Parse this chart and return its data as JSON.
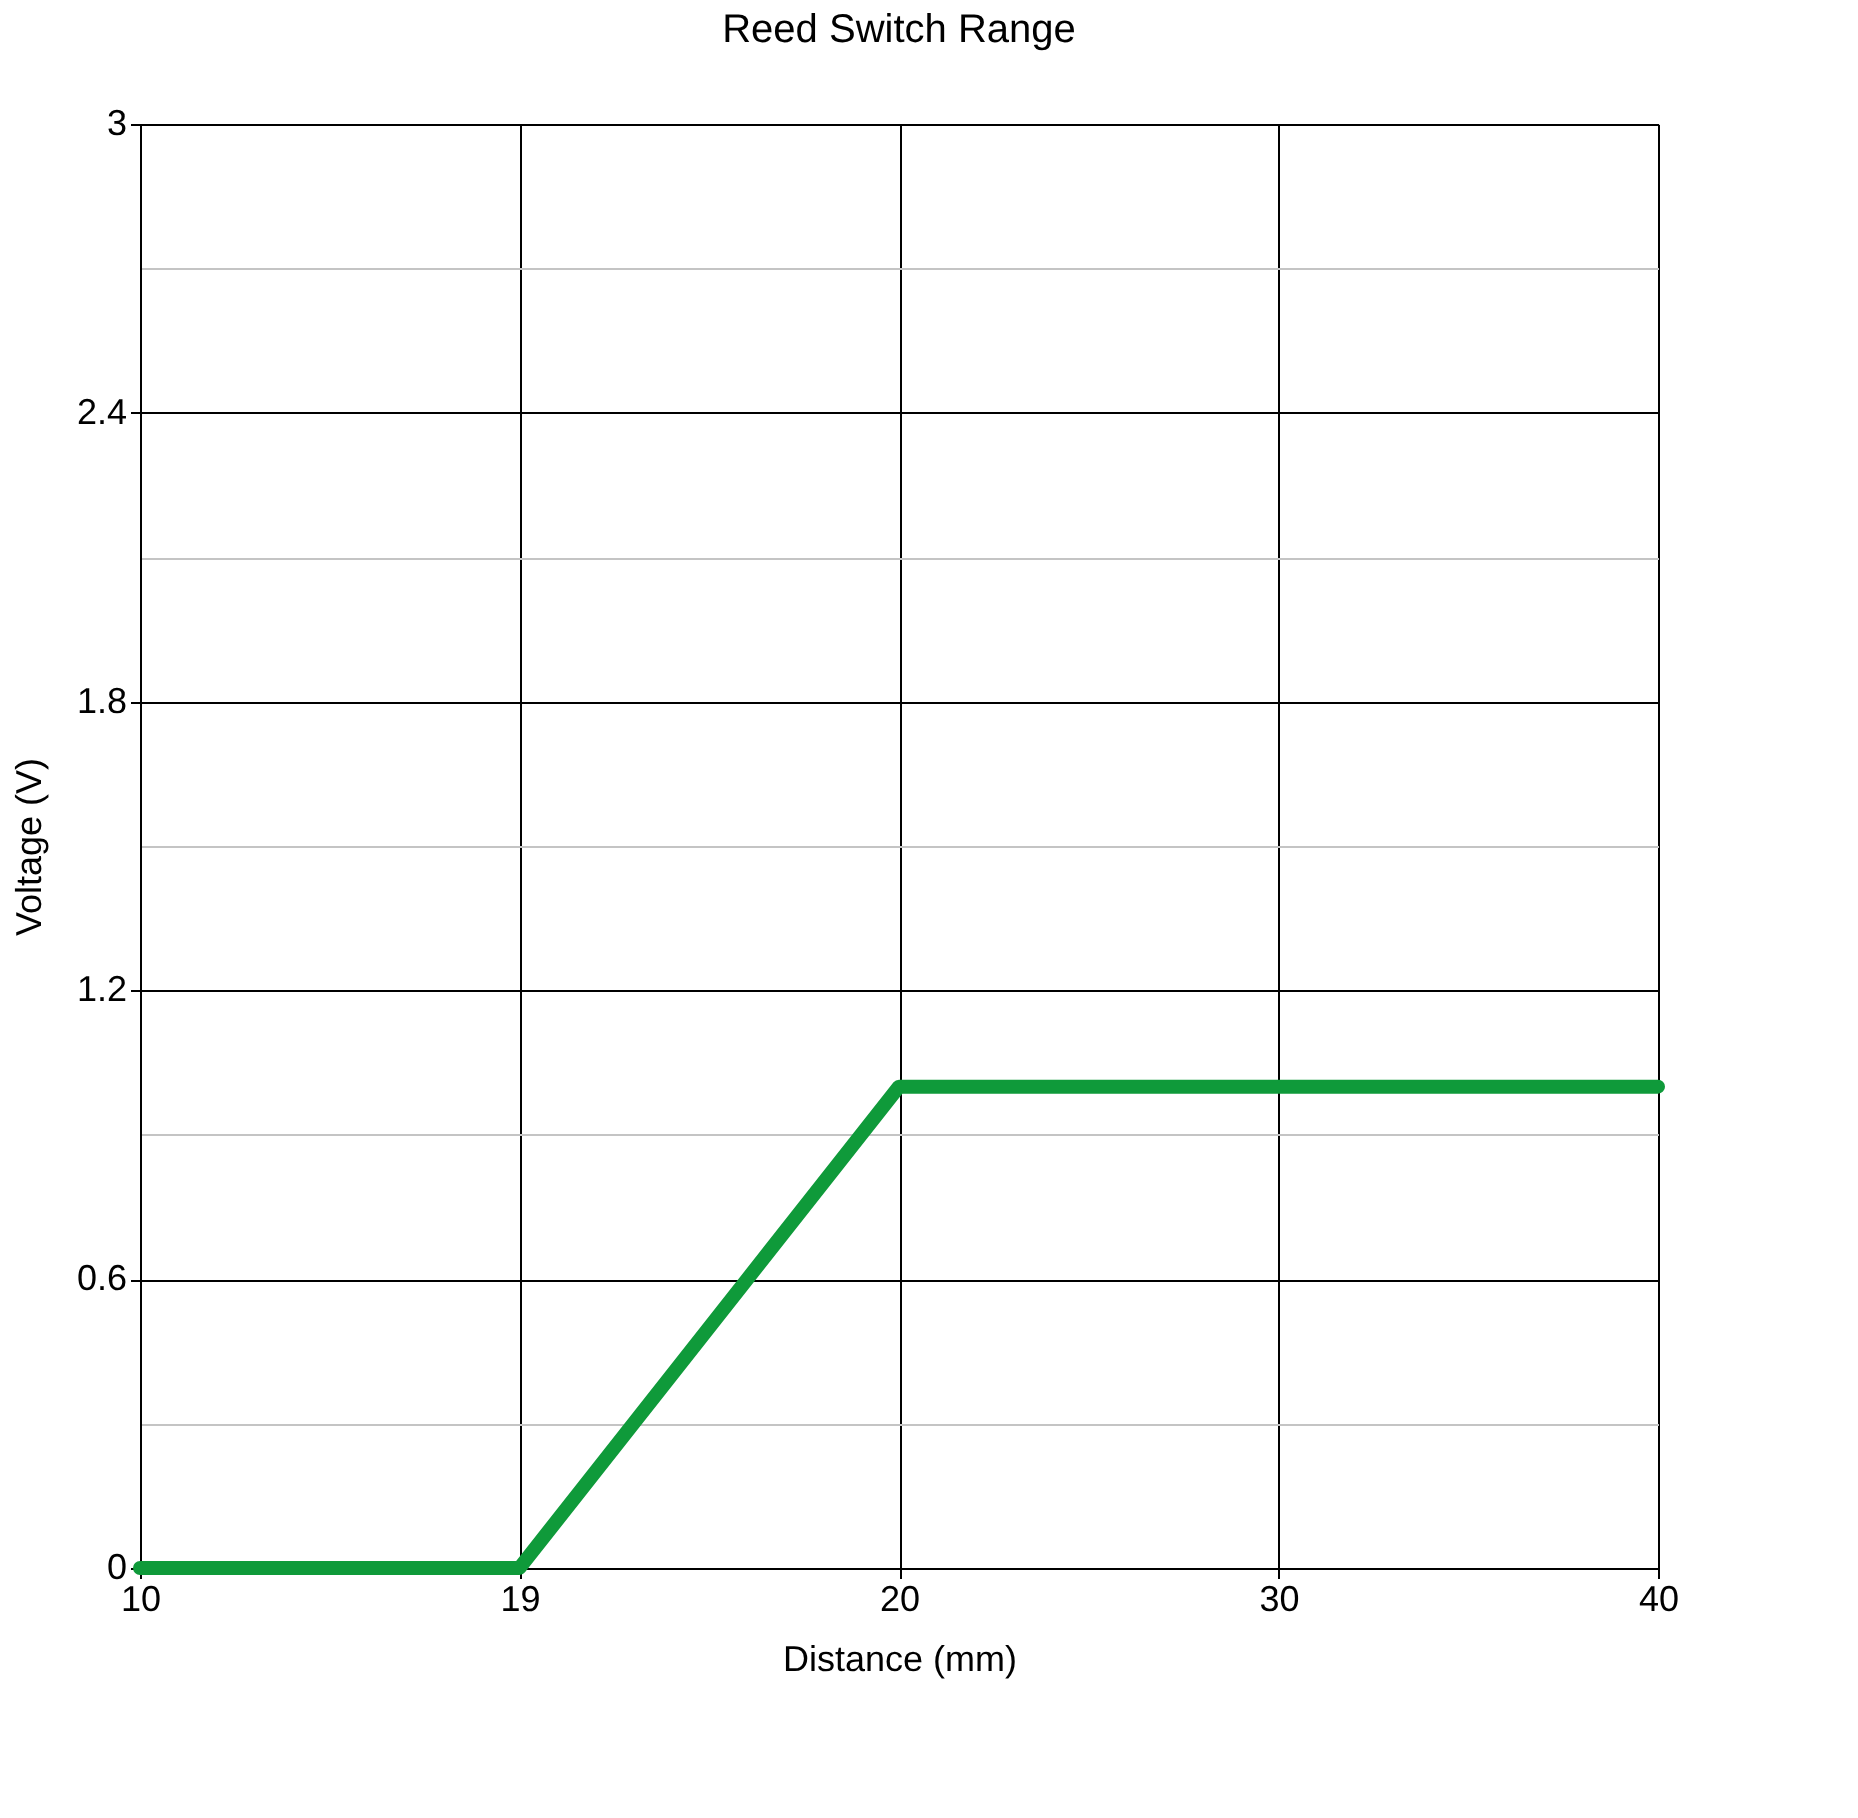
{
  "chart_data": {
    "type": "line",
    "title": "Reed Switch Range",
    "xlabel": "Distance (mm)",
    "ylabel": "Voltage (V)",
    "categories": [
      "10",
      "19",
      "20",
      "30",
      "40"
    ],
    "series": [
      {
        "color": "#0f9a3a",
        "values": [
          0,
          0,
          1.0,
          1.0,
          1.0
        ]
      }
    ],
    "ylim": [
      0,
      3
    ],
    "yticks": [
      0,
      {
        "value": 0.3,
        "label": null
      },
      0.6,
      {
        "value": 0.9,
        "label": null
      },
      1.2,
      {
        "value": 1.5,
        "label": null
      },
      1.8,
      {
        "value": 2.1,
        "label": null
      },
      2.4,
      {
        "value": 2.7,
        "label": null
      },
      3
    ],
    "grid": true,
    "legend": false,
    "line_style": "solid"
  }
}
